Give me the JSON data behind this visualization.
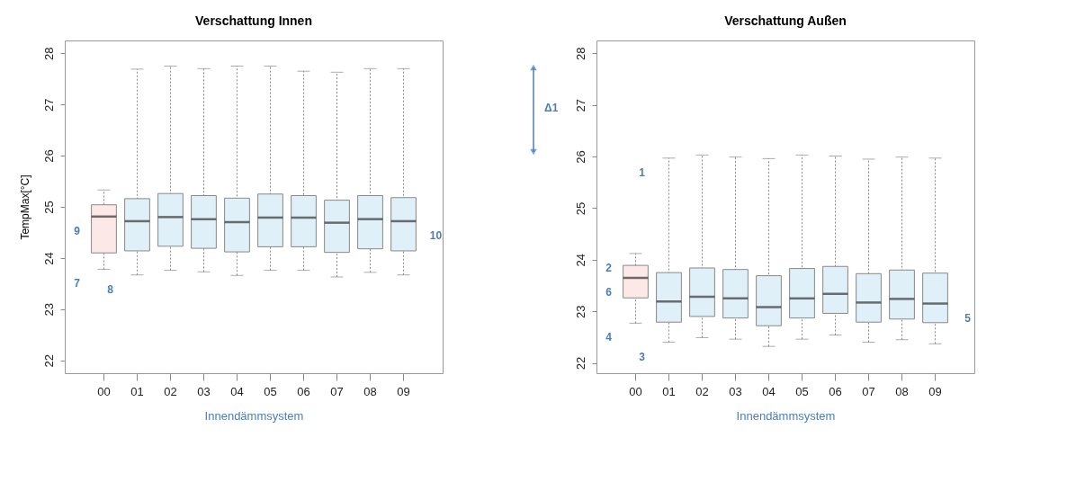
{
  "chart_data": [
    {
      "type": "box",
      "title": "Verschattung Innen",
      "xlabel": "Innendämmsystem",
      "ylabel": "TempMax[°C]",
      "categories": [
        "00",
        "01",
        "02",
        "03",
        "04",
        "05",
        "06",
        "07",
        "08",
        "09"
      ],
      "boxes": [
        {
          "low": 23.78,
          "q1": 24.1,
          "median": 24.81,
          "q3": 25.04,
          "high": 25.33
        },
        {
          "low": 23.67,
          "q1": 24.14,
          "median": 24.72,
          "q3": 25.16,
          "high": 27.69
        },
        {
          "low": 23.76,
          "q1": 24.23,
          "median": 24.8,
          "q3": 25.26,
          "high": 27.75
        },
        {
          "low": 23.73,
          "q1": 24.19,
          "median": 24.76,
          "q3": 25.22,
          "high": 27.7
        },
        {
          "low": 23.66,
          "q1": 24.12,
          "median": 24.7,
          "q3": 25.17,
          "high": 27.75
        },
        {
          "low": 23.76,
          "q1": 24.22,
          "median": 24.79,
          "q3": 25.25,
          "high": 27.75
        },
        {
          "low": 23.76,
          "q1": 24.22,
          "median": 24.79,
          "q3": 25.22,
          "high": 27.65
        },
        {
          "low": 23.63,
          "q1": 24.11,
          "median": 24.69,
          "q3": 25.13,
          "high": 27.63
        },
        {
          "low": 23.72,
          "q1": 24.18,
          "median": 24.76,
          "q3": 25.22,
          "high": 27.7
        },
        {
          "low": 23.67,
          "q1": 24.14,
          "median": 24.72,
          "q3": 25.18,
          "high": 27.7
        }
      ],
      "colors": [
        "#fde8e8",
        "#dff0f9",
        "#dff0f9",
        "#dff0f9",
        "#dff0f9",
        "#dff0f9",
        "#dff0f9",
        "#dff0f9",
        "#dff0f9",
        "#dff0f9"
      ],
      "ylim": [
        21.75,
        28.25
      ],
      "yticks": [
        22,
        23,
        24,
        25,
        26,
        27,
        28
      ],
      "annotations": [
        {
          "text": "9",
          "x": "00",
          "y": 24.81
        },
        {
          "text": "7",
          "x": "00",
          "y": 23.78
        },
        {
          "text": "8",
          "x": "01",
          "y": 23.67
        },
        {
          "text": "10",
          "x": "09",
          "y": 24.72
        }
      ]
    },
    {
      "type": "box",
      "title": "Verschattung Außen",
      "xlabel": "Innendämmsystem",
      "categories": [
        "00",
        "01",
        "02",
        "03",
        "04",
        "05",
        "06",
        "07",
        "08",
        "09"
      ],
      "boxes": [
        {
          "low": 22.77,
          "q1": 23.26,
          "median": 23.65,
          "q3": 23.89,
          "high": 24.12
        },
        {
          "low": 22.4,
          "q1": 22.79,
          "median": 23.19,
          "q3": 23.75,
          "high": 25.97
        },
        {
          "low": 22.49,
          "q1": 22.9,
          "median": 23.28,
          "q3": 23.84,
          "high": 26.03
        },
        {
          "low": 22.46,
          "q1": 22.87,
          "median": 23.25,
          "q3": 23.81,
          "high": 25.99
        },
        {
          "low": 22.32,
          "q1": 22.72,
          "median": 23.08,
          "q3": 23.69,
          "high": 25.96
        },
        {
          "low": 22.46,
          "q1": 22.87,
          "median": 23.25,
          "q3": 23.83,
          "high": 26.03
        },
        {
          "low": 22.54,
          "q1": 22.96,
          "median": 23.34,
          "q3": 23.87,
          "high": 26.01
        },
        {
          "low": 22.4,
          "q1": 22.79,
          "median": 23.17,
          "q3": 23.73,
          "high": 25.95
        },
        {
          "low": 22.45,
          "q1": 22.85,
          "median": 23.24,
          "q3": 23.8,
          "high": 25.99
        },
        {
          "low": 22.37,
          "q1": 22.78,
          "median": 23.15,
          "q3": 23.74,
          "high": 25.97
        }
      ],
      "colors": [
        "#fde8e8",
        "#dff0f9",
        "#dff0f9",
        "#dff0f9",
        "#dff0f9",
        "#dff0f9",
        "#dff0f9",
        "#dff0f9",
        "#dff0f9",
        "#dff0f9"
      ],
      "ylim": [
        21.8,
        28.25
      ],
      "yticks": [
        22,
        23,
        24,
        25,
        26,
        27,
        28
      ],
      "annotations": [
        {
          "text": "1",
          "x": "01",
          "y": 25.97
        },
        {
          "text": "2",
          "x": "00",
          "y": 24.12
        },
        {
          "text": "3",
          "x": "01",
          "y": 22.4
        },
        {
          "text": "4",
          "x": "00",
          "y": 22.77
        },
        {
          "text": "5",
          "x": "09",
          "y": 23.15
        },
        {
          "text": "6",
          "x": "00",
          "y": 23.65
        },
        "Δ1"
      ]
    }
  ]
}
